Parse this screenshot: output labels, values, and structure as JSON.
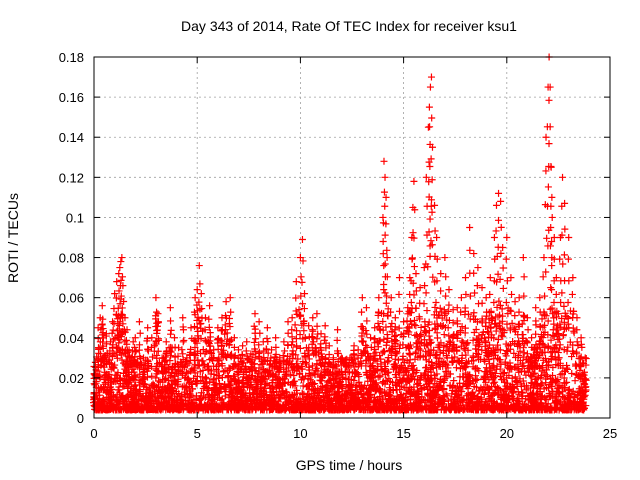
{
  "chart_data": {
    "type": "scatter",
    "title": "Day 343 of 2014, Rate Of TEC Index for receiver ksu1",
    "xlabel": "GPS time / hours",
    "ylabel": "ROTI / TECUs",
    "xlim": [
      0,
      25
    ],
    "ylim": [
      0,
      0.18
    ],
    "xticks": [
      0,
      5,
      10,
      15,
      20,
      25
    ],
    "yticks": [
      0,
      0.02,
      0.04,
      0.06,
      0.08,
      0.1,
      0.12,
      0.14,
      0.16,
      0.18
    ],
    "xtick_labels": [
      "0",
      "5",
      "10",
      "15",
      "20",
      "25"
    ],
    "ytick_labels": [
      "0",
      "0.02",
      "0.04",
      "0.06",
      "0.08",
      "0.1",
      "0.12",
      "0.14",
      "0.16",
      "0.18"
    ],
    "grid": true,
    "marker": "+",
    "marker_color": "#ff0000",
    "series": [
      {
        "name": "ROTI",
        "x": [
          0.0,
          0.1,
          0.2,
          0.3,
          0.4,
          0.5,
          0.6,
          0.7,
          0.8,
          0.9,
          1.0,
          1.1,
          1.2,
          1.25,
          1.3,
          1.35,
          1.4,
          1.5,
          1.6,
          1.7,
          1.8,
          1.9,
          2.0,
          2.2,
          2.4,
          2.6,
          2.8,
          3.0,
          3.1,
          3.3,
          3.5,
          3.7,
          3.9,
          4.1,
          4.3,
          4.5,
          4.7,
          4.9,
          5.0,
          5.1,
          5.2,
          5.4,
          5.6,
          5.8,
          6.0,
          6.2,
          6.4,
          6.6,
          6.8,
          7.0,
          7.2,
          7.4,
          7.6,
          7.8,
          8.0,
          8.2,
          8.4,
          8.6,
          8.8,
          9.0,
          9.2,
          9.4,
          9.6,
          9.8,
          10.0,
          10.1,
          10.2,
          10.4,
          10.6,
          10.8,
          11.0,
          11.2,
          11.4,
          11.6,
          11.8,
          12.0,
          12.2,
          12.4,
          12.6,
          12.8,
          13.0,
          13.2,
          13.4,
          13.6,
          13.8,
          14.0,
          14.05,
          14.1,
          14.15,
          14.2,
          14.4,
          14.6,
          14.8,
          15.0,
          15.2,
          15.3,
          15.4,
          15.45,
          15.5,
          15.6,
          15.8,
          16.0,
          16.1,
          16.2,
          16.25,
          16.3,
          16.35,
          16.4,
          16.5,
          16.6,
          16.8,
          17.0,
          17.2,
          17.4,
          17.6,
          17.8,
          18.0,
          18.2,
          18.4,
          18.6,
          18.8,
          19.0,
          19.2,
          19.4,
          19.5,
          19.6,
          19.7,
          19.8,
          20.0,
          20.2,
          20.4,
          20.6,
          20.8,
          21.0,
          21.2,
          21.4,
          21.6,
          21.8,
          21.9,
          22.0,
          22.05,
          22.1,
          22.15,
          22.2,
          22.3,
          22.4,
          22.6,
          22.7,
          22.8,
          23.0,
          23.2,
          23.4,
          23.6,
          23.8
        ],
        "y": [
          0.012,
          0.024,
          0.045,
          0.05,
          0.056,
          0.03,
          0.042,
          0.02,
          0.038,
          0.048,
          0.062,
          0.068,
          0.072,
          0.075,
          0.078,
          0.08,
          0.066,
          0.05,
          0.044,
          0.034,
          0.03,
          0.038,
          0.04,
          0.048,
          0.03,
          0.045,
          0.04,
          0.06,
          0.052,
          0.03,
          0.038,
          0.055,
          0.04,
          0.035,
          0.05,
          0.03,
          0.045,
          0.06,
          0.064,
          0.076,
          0.062,
          0.05,
          0.056,
          0.034,
          0.045,
          0.05,
          0.058,
          0.06,
          0.04,
          0.034,
          0.036,
          0.038,
          0.032,
          0.052,
          0.048,
          0.038,
          0.045,
          0.034,
          0.04,
          0.03,
          0.038,
          0.048,
          0.05,
          0.068,
          0.08,
          0.089,
          0.062,
          0.046,
          0.05,
          0.052,
          0.042,
          0.046,
          0.036,
          0.03,
          0.044,
          0.03,
          0.026,
          0.03,
          0.036,
          0.034,
          0.06,
          0.055,
          0.04,
          0.045,
          0.06,
          0.1,
          0.128,
          0.12,
          0.11,
          0.08,
          0.06,
          0.05,
          0.07,
          0.048,
          0.055,
          0.07,
          0.09,
          0.105,
          0.118,
          0.072,
          0.065,
          0.075,
          0.12,
          0.145,
          0.155,
          0.165,
          0.17,
          0.135,
          0.106,
          0.09,
          0.072,
          0.08,
          0.064,
          0.054,
          0.055,
          0.06,
          0.07,
          0.095,
          0.082,
          0.075,
          0.065,
          0.06,
          0.07,
          0.09,
          0.106,
          0.112,
          0.108,
          0.085,
          0.09,
          0.07,
          0.058,
          0.06,
          0.08,
          0.05,
          0.04,
          0.055,
          0.06,
          0.08,
          0.14,
          0.165,
          0.18,
          0.165,
          0.125,
          0.1,
          0.09,
          0.07,
          0.09,
          0.12,
          0.107,
          0.09,
          0.07,
          0.05,
          0.04,
          0.03
        ]
      }
    ]
  }
}
